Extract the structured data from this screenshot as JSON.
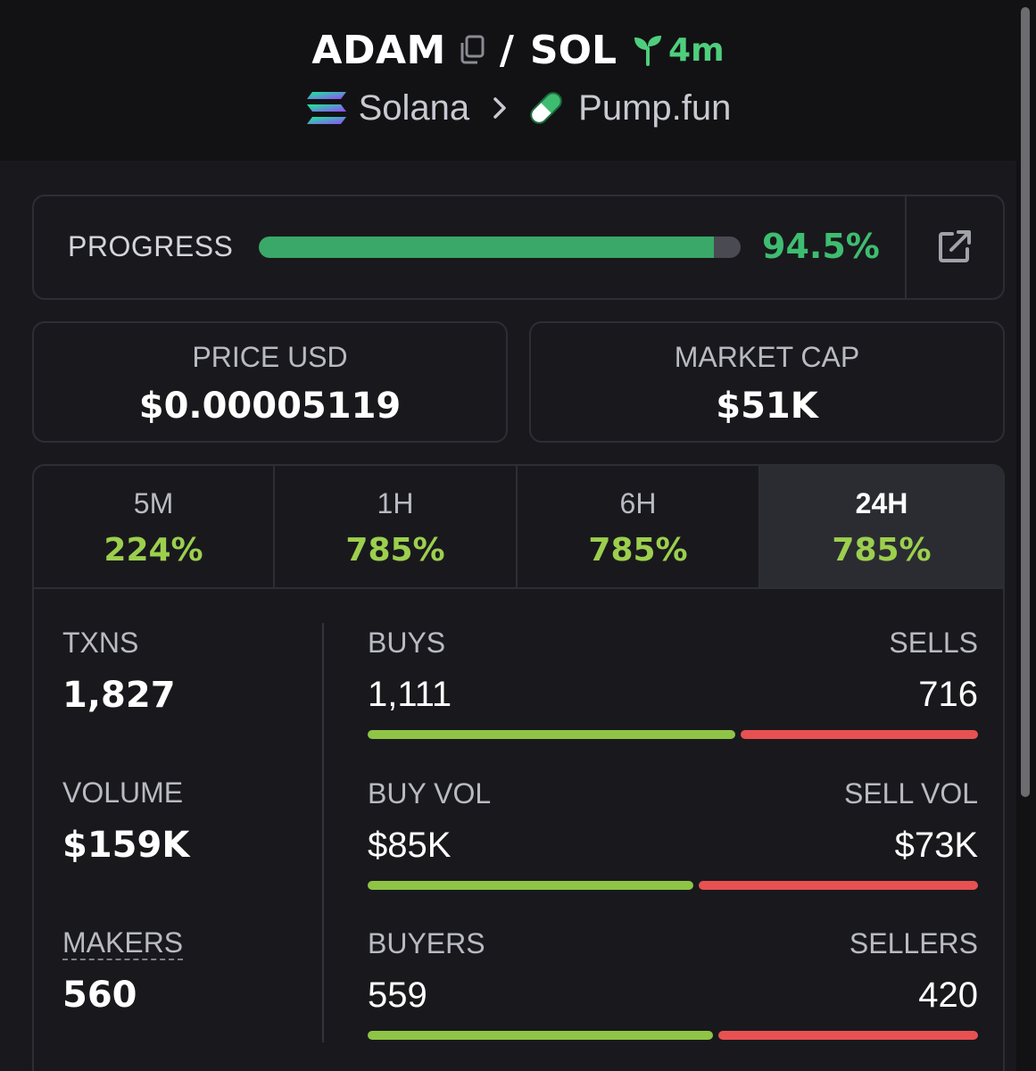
{
  "header": {
    "token_name": "ADAM",
    "separator": "/",
    "quote_token": "SOL",
    "age": "4m",
    "chain": "Solana",
    "dex": "Pump.fun",
    "colors": {
      "age": "#4fce7d",
      "background": "#121214"
    }
  },
  "progress": {
    "label": "PROGRESS",
    "value_text": "94.5%",
    "fraction": 0.945
  },
  "price": {
    "label": "PRICE USD",
    "value": "$0.00005119"
  },
  "market_cap": {
    "label": "MARKET CAP",
    "value": "$51K"
  },
  "timeframes": [
    {
      "label": "5M",
      "change": "224%",
      "active": false
    },
    {
      "label": "1H",
      "change": "785%",
      "active": false
    },
    {
      "label": "6H",
      "change": "785%",
      "active": false
    },
    {
      "label": "24H",
      "change": "785%",
      "active": true
    }
  ],
  "stats": {
    "txns": {
      "label": "TXNS",
      "value": "1,827"
    },
    "volume": {
      "label": "VOLUME",
      "value": "$159K"
    },
    "makers": {
      "label": "MAKERS",
      "value": "560"
    },
    "rows": [
      {
        "left_label": "BUYS",
        "left_value": "1,111",
        "right_label": "SELLS",
        "right_value": "716",
        "buy": 1111,
        "sell": 716
      },
      {
        "left_label": "BUY VOL",
        "left_value": "$85K",
        "right_label": "SELL VOL",
        "right_value": "$73K",
        "buy": 85,
        "sell": 73
      },
      {
        "left_label": "BUYERS",
        "left_value": "559",
        "right_label": "SELLERS",
        "right_value": "420",
        "buy": 559,
        "sell": 420
      }
    ]
  },
  "colors": {
    "positive": "#9ccf4e",
    "progress": "#3aa868",
    "buy_bar": "#8fc446",
    "sell_bar": "#e85151"
  }
}
